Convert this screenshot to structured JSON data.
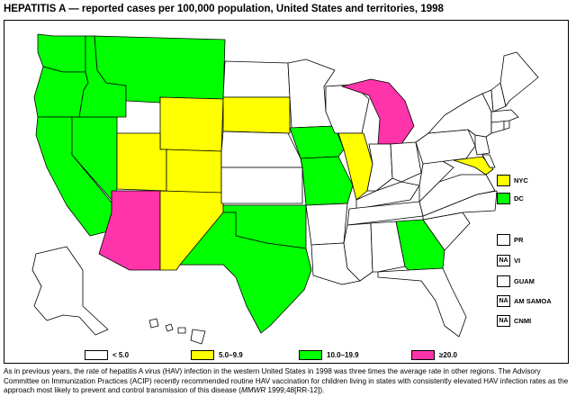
{
  "title": "HEPATITIS A — reported cases per 100,000 population, United States and territories, 1998",
  "colors": {
    "lt5": "#ffffff",
    "c5_9": "#ffff00",
    "c10_19": "#00ff00",
    "ge20": "#ff33aa",
    "border": "#000000"
  },
  "legend": [
    {
      "label": "< 5.0",
      "color_key": "lt5"
    },
    {
      "label": "5.0–9.9",
      "color_key": "c5_9"
    },
    {
      "label": "10.0–19.9",
      "color_key": "c10_19"
    },
    {
      "label": "≥20.0",
      "color_key": "ge20"
    }
  ],
  "territories": [
    {
      "label": "NYC",
      "box_text": "",
      "color_key": "c5_9"
    },
    {
      "label": "DC",
      "box_text": "",
      "color_key": "c10_19"
    },
    {
      "label": "PR",
      "box_text": "",
      "color_key": "lt5"
    },
    {
      "label": "VI",
      "box_text": "NA",
      "color_key": "lt5"
    },
    {
      "label": "GUAM",
      "box_text": "",
      "color_key": "lt5"
    },
    {
      "label": "AM SAMOA",
      "box_text": "NA",
      "color_key": "lt5"
    },
    {
      "label": "CNMI",
      "box_text": "NA",
      "color_key": "lt5"
    }
  ],
  "state_rates": {
    "WA": "c10_19",
    "OR": "c10_19",
    "CA": "c10_19",
    "ID": "c10_19",
    "MT": "c10_19",
    "NV": "c10_19",
    "WY": "c5_9",
    "UT": "c5_9",
    "CO": "c5_9",
    "NM": "c5_9",
    "SD": "c5_9",
    "AZ": "ge20",
    "MI": "ge20",
    "OK": "c10_19",
    "TX": "c10_19",
    "IA": "c10_19",
    "MO": "c10_19",
    "GA": "c10_19",
    "IL": "c5_9",
    "MD": "c5_9",
    "ND": "lt5",
    "NE": "lt5",
    "KS": "lt5",
    "MN": "lt5",
    "WI": "lt5",
    "AR": "lt5",
    "LA": "lt5",
    "IN": "lt5",
    "OH": "lt5",
    "KY": "lt5",
    "TN": "lt5",
    "MS": "lt5",
    "AL": "lt5",
    "FL": "lt5",
    "SC": "lt5",
    "NC": "lt5",
    "VA": "lt5",
    "WV": "lt5",
    "PA": "lt5",
    "NY": "lt5",
    "NJ": "lt5",
    "DE": "lt5",
    "CT": "lt5",
    "RI": "lt5",
    "MA": "lt5",
    "VT": "lt5",
    "NH": "lt5",
    "ME": "lt5",
    "AK": "lt5",
    "HI": "lt5"
  },
  "footnote_parts": {
    "main": "As in previous years, the rate of hepatitis A virus (HAV) infection in the western United States in 1998 was three times the average rate in other regions. The Advisory Committee on Immunization Practices (ACIP) recently recommended routine HAV vaccination for children living in states with consistently elevated HAV infection rates as the approach most likely to prevent and control transmission of this disease (",
    "journal": "MMWR",
    "citation": " 1999;48[RR-12])."
  }
}
